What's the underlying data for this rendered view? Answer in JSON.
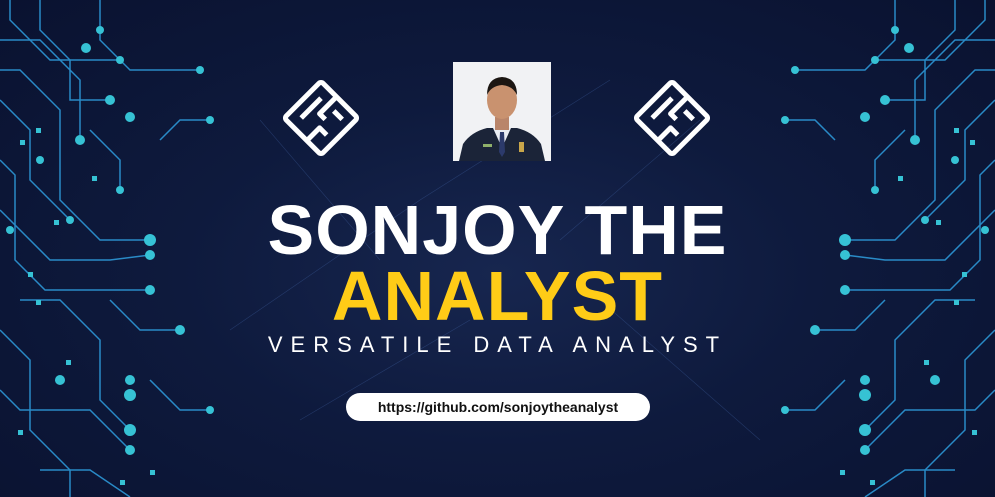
{
  "banner": {
    "title_line1": "SONJOY THE",
    "title_line2": "ANALYST",
    "subtitle": "VERSATILE DATA ANALYST",
    "url": "https://github.com/sonjoytheanalyst"
  },
  "colors": {
    "background": "#0b1330",
    "title": "#ffffff",
    "accent": "#ffcc17",
    "circuit": "#2f9fe0",
    "node": "#3ee0f0"
  }
}
